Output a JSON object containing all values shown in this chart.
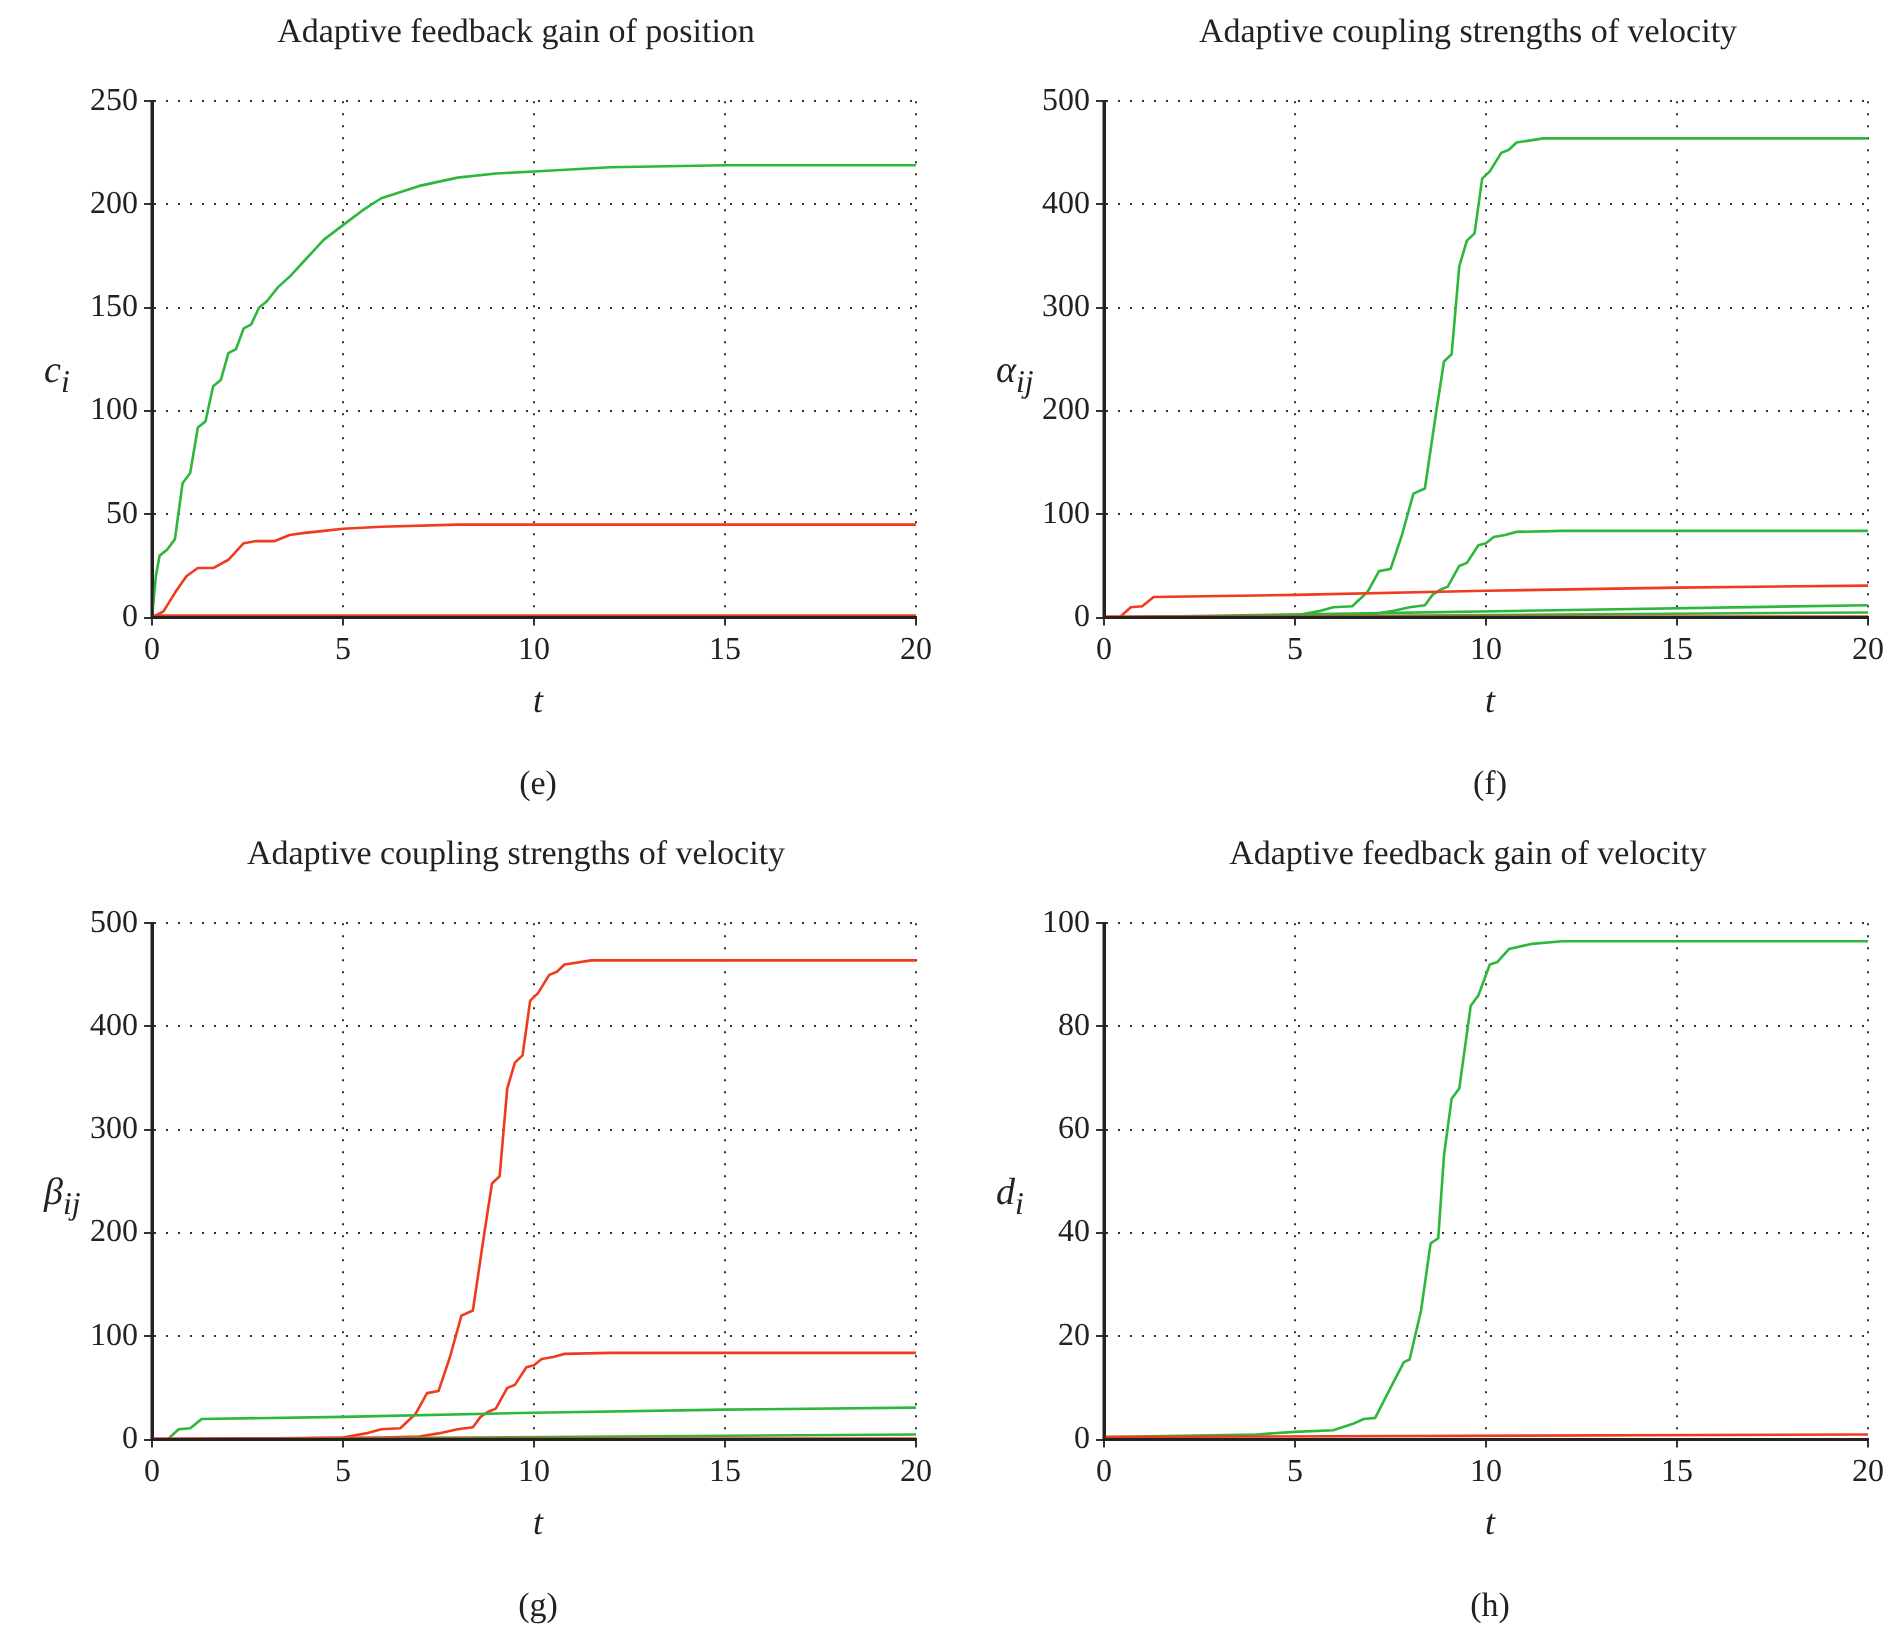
{
  "chart_data": [
    {
      "type": "line",
      "title": "Adaptive feedback gain of position",
      "xlabel": "t",
      "ylabel": "c$_{i}$",
      "annotations": [
        "(e)"
      ],
      "xlim": [
        0,
        20
      ],
      "xticks": [
        0,
        5,
        10,
        15,
        20
      ],
      "ylim": [
        0,
        250
      ],
      "yticks": [
        0,
        50,
        100,
        150,
        200,
        250
      ],
      "grid": true,
      "marker": "none",
      "line_style": "solid",
      "series": [
        {
          "color": "#2db83d",
          "x": [
            0,
            0.1,
            0.2,
            0.4,
            0.6,
            0.8,
            1.0,
            1.2,
            1.4,
            1.6,
            1.8,
            2.0,
            2.2,
            2.4,
            2.6,
            2.8,
            3,
            3.3,
            3.6,
            4,
            4.5,
            5,
            5.5,
            6,
            7,
            8,
            9,
            10,
            12,
            15,
            20
          ],
          "values": [
            0,
            20,
            30,
            33,
            38,
            65,
            70,
            92,
            95,
            112,
            115,
            128,
            130,
            140,
            142,
            150,
            153,
            160,
            165,
            173,
            183,
            190,
            197,
            203,
            209,
            213,
            215,
            216,
            218,
            219,
            219
          ]
        },
        {
          "color": "#f03c1e",
          "x": [
            0,
            0.3,
            0.6,
            0.9,
            1.2,
            1.6,
            2,
            2.4,
            2.7,
            3.2,
            3.6,
            4,
            4.5,
            5,
            6,
            8,
            10,
            20
          ],
          "values": [
            0,
            3,
            12,
            20,
            24,
            24,
            28,
            36,
            37,
            37,
            40,
            41,
            42,
            43,
            44,
            45,
            45,
            45
          ]
        },
        {
          "color": "#f03c1e",
          "x": [
            0,
            20
          ],
          "values": [
            1,
            1
          ]
        }
      ]
    },
    {
      "type": "line",
      "title": "Adaptive coupling strengths of velocity",
      "xlabel": "t",
      "ylabel": "α$_{ij}$",
      "annotations": [
        "(f)"
      ],
      "xlim": [
        0,
        20
      ],
      "xticks": [
        0,
        5,
        10,
        15,
        20
      ],
      "ylim": [
        0,
        500
      ],
      "yticks": [
        0,
        100,
        200,
        300,
        400,
        500
      ],
      "grid": true,
      "marker": "none",
      "line_style": "solid",
      "series": [
        {
          "color": "#2db83d",
          "x": [
            0,
            5,
            5.6,
            6,
            6.5,
            6.9,
            7.2,
            7.5,
            7.8,
            8.1,
            8.4,
            8.7,
            8.9,
            9.1,
            9.3,
            9.5,
            9.7,
            9.9,
            10.1,
            10.4,
            10.6,
            10.8,
            11.5,
            20
          ],
          "values": [
            0,
            2,
            6,
            10,
            11,
            25,
            45,
            47,
            80,
            120,
            125,
            200,
            248,
            255,
            340,
            365,
            372,
            425,
            432,
            450,
            453,
            460,
            464,
            464
          ]
        },
        {
          "color": "#2db83d",
          "x": [
            0,
            6,
            7,
            7.5,
            8,
            8.4,
            8.6,
            8.8,
            9,
            9.3,
            9.5,
            9.8,
            10,
            10.2,
            10.5,
            10.8,
            12,
            20
          ],
          "values": [
            0,
            2,
            3,
            6,
            10,
            12,
            22,
            27,
            30,
            50,
            53,
            70,
            72,
            78,
            80,
            83,
            84,
            84
          ]
        },
        {
          "color": "#f03c1e",
          "x": [
            0,
            0.4,
            0.7,
            1,
            1.3,
            5,
            10,
            15,
            20
          ],
          "values": [
            0,
            0,
            10,
            11,
            20,
            22,
            26,
            29,
            31
          ]
        },
        {
          "color": "#2db83d",
          "x": [
            0,
            20
          ],
          "values": [
            0,
            12
          ]
        },
        {
          "color": "#2db83d",
          "x": [
            0,
            20
          ],
          "values": [
            0,
            5
          ]
        },
        {
          "color": "#f03c1e",
          "x": [
            0,
            20
          ],
          "values": [
            1,
            1
          ]
        }
      ]
    },
    {
      "type": "line",
      "title": "Adaptive coupling strengths of velocity",
      "xlabel": "t",
      "ylabel": "β$_{ij}$",
      "annotations": [
        "(g)"
      ],
      "xlim": [
        0,
        20
      ],
      "xticks": [
        0,
        5,
        10,
        15,
        20
      ],
      "ylim": [
        0,
        500
      ],
      "yticks": [
        0,
        100,
        200,
        300,
        400,
        500
      ],
      "grid": true,
      "marker": "none",
      "line_style": "solid",
      "series": [
        {
          "color": "#f03c1e",
          "x": [
            0,
            5,
            5.6,
            6,
            6.5,
            6.9,
            7.2,
            7.5,
            7.8,
            8.1,
            8.4,
            8.7,
            8.9,
            9.1,
            9.3,
            9.5,
            9.7,
            9.9,
            10.1,
            10.4,
            10.6,
            10.8,
            11.5,
            20
          ],
          "values": [
            0,
            2,
            6,
            10,
            11,
            25,
            45,
            47,
            80,
            120,
            125,
            200,
            248,
            255,
            340,
            365,
            372,
            425,
            432,
            450,
            453,
            460,
            464,
            464
          ]
        },
        {
          "color": "#f03c1e",
          "x": [
            0,
            6,
            7,
            7.5,
            8,
            8.4,
            8.6,
            8.8,
            9,
            9.3,
            9.5,
            9.8,
            10,
            10.2,
            10.5,
            10.8,
            12,
            20
          ],
          "values": [
            0,
            2,
            3,
            6,
            10,
            12,
            22,
            27,
            30,
            50,
            53,
            70,
            72,
            78,
            80,
            83,
            84,
            84
          ]
        },
        {
          "color": "#2db83d",
          "x": [
            0,
            0.4,
            0.7,
            1,
            1.3,
            5,
            10,
            15,
            20
          ],
          "values": [
            0,
            0,
            10,
            11,
            20,
            22,
            26,
            29,
            31
          ]
        },
        {
          "color": "#2db83d",
          "x": [
            0,
            20
          ],
          "values": [
            0,
            5
          ]
        },
        {
          "color": "#f03c1e",
          "x": [
            0,
            20
          ],
          "values": [
            1,
            1
          ]
        }
      ]
    },
    {
      "type": "line",
      "title": "Adaptive feedback gain of velocity",
      "xlabel": "t",
      "ylabel": "d$_{i}$",
      "annotations": [
        "(h)"
      ],
      "xlim": [
        0,
        20
      ],
      "xticks": [
        0,
        5,
        10,
        15,
        20
      ],
      "ylim": [
        0,
        100
      ],
      "yticks": [
        0,
        20,
        40,
        60,
        80,
        100
      ],
      "grid": true,
      "marker": "none",
      "line_style": "solid",
      "series": [
        {
          "color": "#2db83d",
          "x": [
            0,
            4,
            5,
            6,
            6.5,
            6.8,
            7.1,
            7.5,
            7.85,
            8.0,
            8.3,
            8.55,
            8.75,
            8.9,
            9.1,
            9.3,
            9.6,
            9.8,
            10.1,
            10.3,
            10.6,
            11.2,
            12,
            20
          ],
          "values": [
            0.5,
            1,
            1.5,
            1.8,
            3,
            4,
            4.2,
            10,
            15,
            15.5,
            25,
            38,
            39,
            55,
            66,
            68,
            84,
            86,
            92,
            92.5,
            95,
            96,
            96.5,
            96.5
          ]
        },
        {
          "color": "#f03c1e",
          "x": [
            0,
            20
          ],
          "values": [
            0.5,
            1
          ]
        }
      ]
    }
  ]
}
